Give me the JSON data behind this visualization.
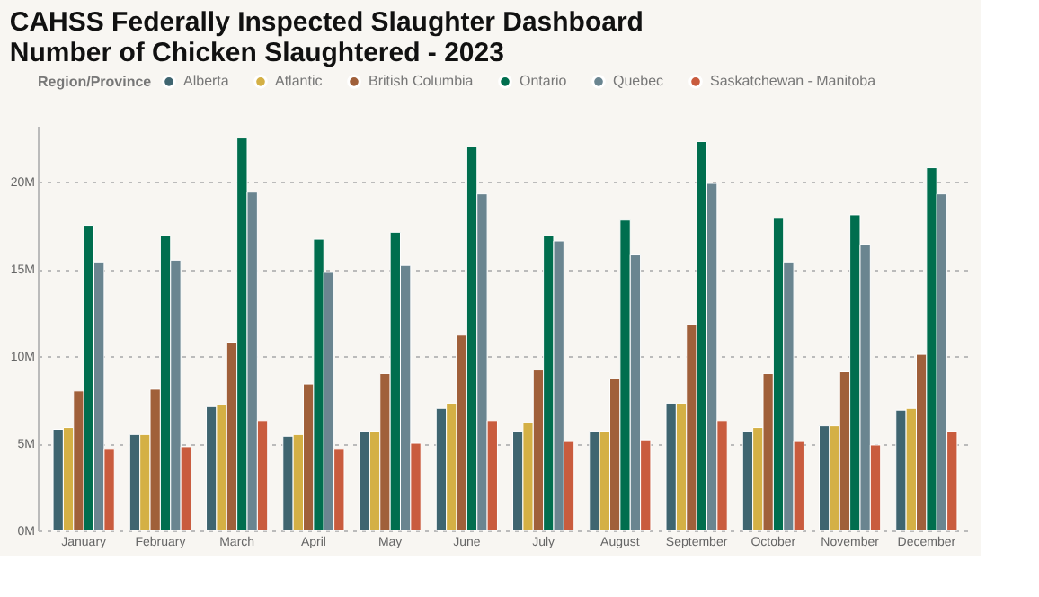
{
  "chart_data": {
    "type": "bar",
    "title": [
      "CAHSS Federally Inspected Slaughter Dashboard",
      "Number of Chicken Slaughtered - 2023"
    ],
    "legend_title": "Region/Province",
    "legend": "top left",
    "grid": "y",
    "categories": [
      "January",
      "February",
      "March",
      "April",
      "May",
      "June",
      "July",
      "August",
      "September",
      "October",
      "November",
      "December"
    ],
    "ylim": [
      0,
      23200000
    ],
    "yticks": [
      {
        "value": 0,
        "label": "0M"
      },
      {
        "value": 5000000,
        "label": "5M"
      },
      {
        "value": 10000000,
        "label": "10M"
      },
      {
        "value": 15000000,
        "label": "15M"
      },
      {
        "value": 20000000,
        "label": "20M"
      }
    ],
    "series": [
      {
        "name": "Alberta",
        "color": "#3f6570",
        "values": [
          5800000,
          5500000,
          7100000,
          5400000,
          5700000,
          7000000,
          5700000,
          5700000,
          7300000,
          5700000,
          6000000,
          6900000
        ]
      },
      {
        "name": "Atlantic",
        "color": "#d4b045",
        "values": [
          5900000,
          5500000,
          7200000,
          5500000,
          5700000,
          7300000,
          6200000,
          5700000,
          7300000,
          5900000,
          6000000,
          7000000
        ]
      },
      {
        "name": "British Columbia",
        "color": "#a0603a",
        "values": [
          8000000,
          8100000,
          10800000,
          8400000,
          9000000,
          11200000,
          9200000,
          8700000,
          11800000,
          9000000,
          9100000,
          10100000
        ]
      },
      {
        "name": "Ontario",
        "color": "#006e4e",
        "values": [
          17500000,
          16900000,
          22500000,
          16700000,
          17100000,
          22000000,
          16900000,
          17800000,
          22300000,
          17900000,
          18100000,
          20800000
        ]
      },
      {
        "name": "Quebec",
        "color": "#6a8590",
        "values": [
          15400000,
          15500000,
          19400000,
          14800000,
          15200000,
          19300000,
          16600000,
          15800000,
          19900000,
          15400000,
          16400000,
          19300000
        ]
      },
      {
        "name": "Saskatchewan - Manitoba",
        "color": "#c95c3e",
        "values": [
          4700000,
          4800000,
          6300000,
          4700000,
          5000000,
          6300000,
          5100000,
          5200000,
          6300000,
          5100000,
          4900000,
          5700000
        ]
      }
    ]
  }
}
